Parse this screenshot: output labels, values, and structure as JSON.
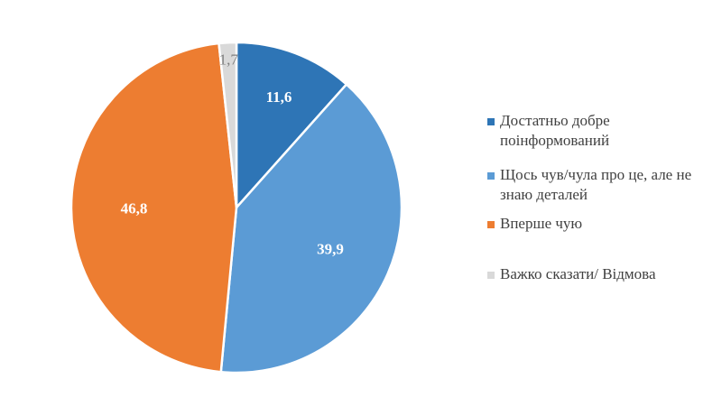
{
  "chart_data": {
    "type": "pie",
    "categories": [
      "Достатньо добре поінформований",
      "Щось чув/чула про це, але не знаю деталей",
      "Вперше чую",
      "Важко сказати/ Відмова"
    ],
    "values": [
      11.6,
      39.9,
      46.8,
      1.7
    ],
    "data_labels": [
      "11,6",
      "39,9",
      "46,8",
      "1,7"
    ],
    "colors": [
      "#2E75B6",
      "#5B9BD5",
      "#ED7D31",
      "#D9D9D9"
    ],
    "label_colors": [
      "#ffffff",
      "#ffffff",
      "#ffffff",
      "#808080"
    ],
    "start_angle_deg": 0,
    "direction": "clockwise",
    "legend_position": "right"
  }
}
